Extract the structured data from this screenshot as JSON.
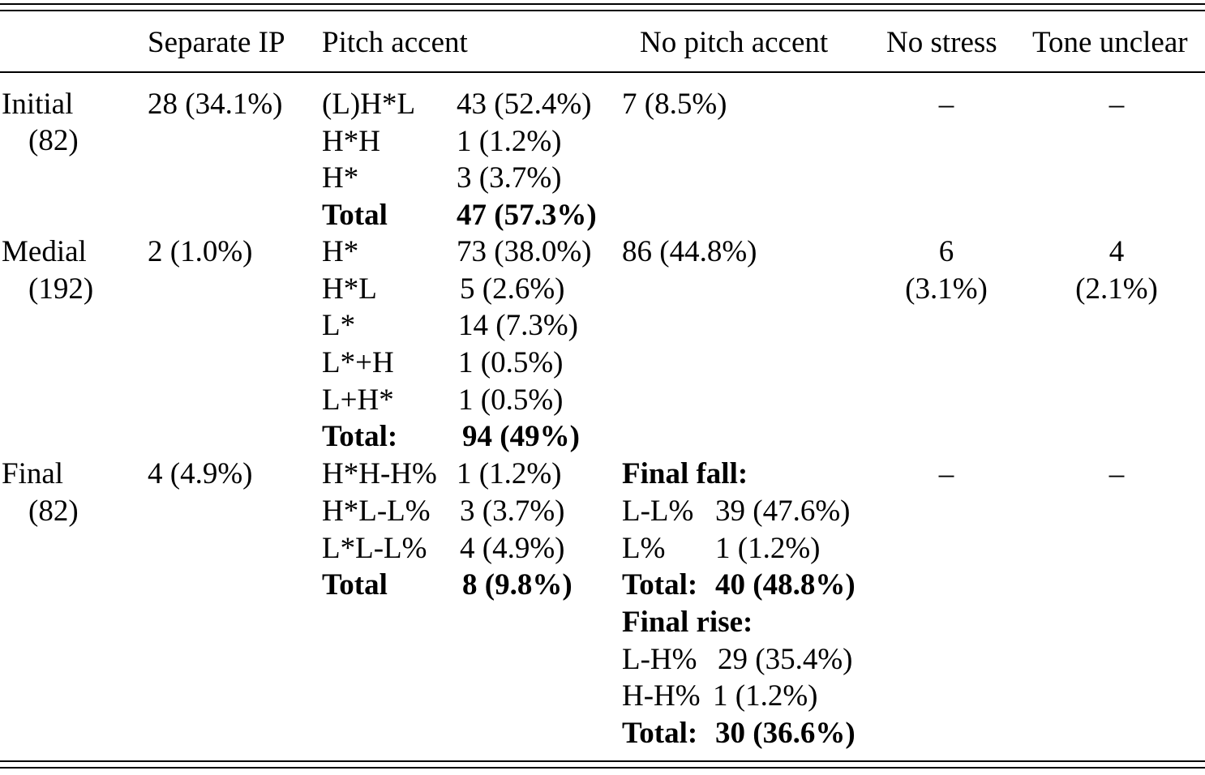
{
  "headers": {
    "separate_ip": "Separate IP",
    "pitch_accent": "Pitch accent",
    "no_pitch_accent": "No pitch accent",
    "no_stress": "No stress",
    "tone_unclear": "Tone unclear"
  },
  "initial": {
    "label": "Initial",
    "count": "(82)",
    "separate_ip": "28 (34.1%)",
    "accents": [
      {
        "tone": "(L)H*L",
        "value": "43 (52.4%)"
      },
      {
        "tone": "H*H",
        "value": "1 (1.2%)"
      },
      {
        "tone": "H*",
        "value": "3 (3.7%)"
      }
    ],
    "total_label": "Total",
    "total_value": "47 (57.3%)",
    "no_pitch_accent": "7 (8.5%)",
    "no_stress": "–",
    "tone_unclear": "–"
  },
  "medial": {
    "label": "Medial",
    "count": "(192)",
    "separate_ip": "2 (1.0%)",
    "accents": [
      {
        "tone": "H*",
        "value": "73 (38.0%)"
      },
      {
        "tone": "H*L",
        "value": "5 (2.6%)"
      },
      {
        "tone": "L*",
        "value": "14 (7.3%)"
      },
      {
        "tone": "L*+H",
        "value": "1 (0.5%)"
      },
      {
        "tone": "L+H*",
        "value": "1 (0.5%)"
      }
    ],
    "total_label": "Total:",
    "total_value": "94 (49%)",
    "no_pitch_accent": "86 (44.8%)",
    "no_stress": [
      "6",
      "(3.1%)"
    ],
    "tone_unclear": [
      "4",
      "(2.1%)"
    ]
  },
  "final": {
    "label": "Final",
    "count": "(82)",
    "separate_ip": "4 (4.9%)",
    "accents": [
      {
        "tone": "H*H-H%",
        "value": "1 (1.2%)"
      },
      {
        "tone": "H*L-L%",
        "value": "3 (3.7%)"
      },
      {
        "tone": "L*L-L%",
        "value": "4 (4.9%)"
      }
    ],
    "total_label": "Total",
    "total_value": "8 (9.8%)",
    "fall": {
      "heading": "Final fall:",
      "items": [
        {
          "tone": "L-L%",
          "value": "39 (47.6%)"
        },
        {
          "tone": "L%",
          "value": "1 (1.2%)"
        }
      ],
      "total_label": "Total:",
      "total_value": "40 (48.8%)"
    },
    "rise": {
      "heading": "Final rise:",
      "items": [
        {
          "tone": "L-H%",
          "value": "29 (35.4%)"
        },
        {
          "tone": "H-H%",
          "value": "1 (1.2%)"
        }
      ],
      "total_label": "Total:",
      "total_value": "30 (36.6%)"
    },
    "no_stress": "–",
    "tone_unclear": "–"
  }
}
